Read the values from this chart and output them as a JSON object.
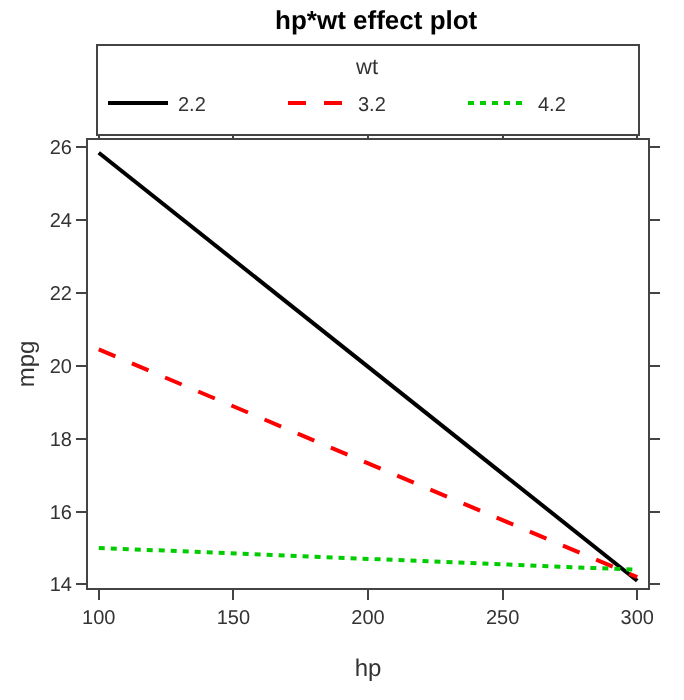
{
  "chart_data": {
    "type": "line",
    "title": "hp*wt effect plot",
    "xlabel": "hp",
    "ylabel": "mpg",
    "legend_title": "wt",
    "x": [
      100,
      300
    ],
    "series": [
      {
        "name": "2.2",
        "color": "#000000",
        "line_style": "solid",
        "values": [
          25.85,
          14.1
        ]
      },
      {
        "name": "3.2",
        "color": "#ff0000",
        "line_style": "dashed",
        "values": [
          20.45,
          14.2
        ]
      },
      {
        "name": "4.2",
        "color": "#00cc00",
        "line_style": "dotted",
        "values": [
          15.0,
          14.4
        ]
      }
    ],
    "xlim": [
      96,
      304
    ],
    "ylim": [
      13.9,
      26.2
    ],
    "xticks": [
      100,
      150,
      200,
      250,
      300
    ],
    "yticks": [
      14,
      16,
      18,
      20,
      22,
      24,
      26
    ],
    "legend": "top",
    "marker": "none"
  }
}
